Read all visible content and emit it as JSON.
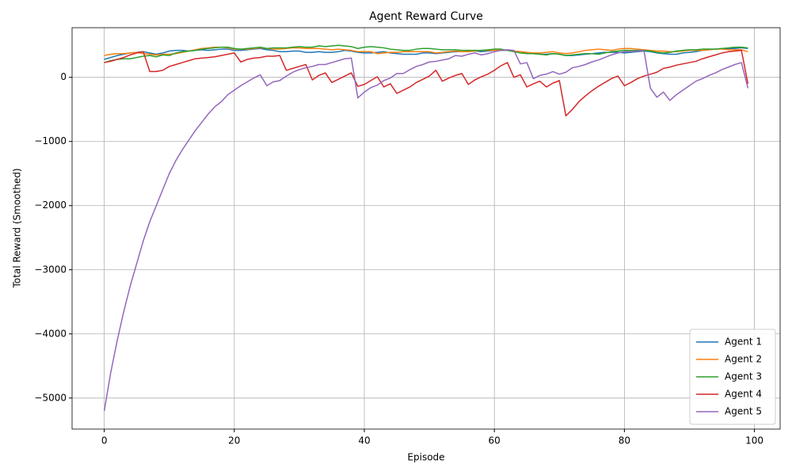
{
  "chart_data": {
    "type": "line",
    "title": "Agent Reward Curve",
    "x_label": "Episode",
    "y_label": "Total Reward (Smoothed)",
    "x": [
      0,
      1,
      2,
      3,
      4,
      5,
      6,
      7,
      8,
      9,
      10,
      11,
      12,
      13,
      14,
      15,
      16,
      17,
      18,
      19,
      20,
      21,
      22,
      23,
      24,
      25,
      26,
      27,
      28,
      29,
      30,
      31,
      32,
      33,
      34,
      35,
      36,
      37,
      38,
      39,
      40,
      41,
      42,
      43,
      44,
      45,
      46,
      47,
      48,
      49,
      50,
      51,
      52,
      53,
      54,
      55,
      56,
      57,
      58,
      59,
      60,
      61,
      62,
      63,
      64,
      65,
      66,
      67,
      68,
      69,
      70,
      71,
      72,
      73,
      74,
      75,
      76,
      77,
      78,
      79,
      80,
      81,
      82,
      83,
      84,
      85,
      86,
      87,
      88,
      89,
      90,
      91,
      92,
      93,
      94,
      95,
      96,
      97,
      98,
      99
    ],
    "series": [
      {
        "name": "Agent 1",
        "color": "#1f77b4",
        "values": [
          280,
          310,
          340,
          360,
          380,
          390,
          400,
          380,
          360,
          380,
          410,
          420,
          420,
          410,
          420,
          430,
          420,
          430,
          440,
          440,
          420,
          420,
          430,
          440,
          450,
          430,
          420,
          400,
          400,
          410,
          410,
          390,
          390,
          400,
          390,
          390,
          400,
          420,
          410,
          390,
          380,
          380,
          390,
          400,
          380,
          370,
          360,
          360,
          360,
          380,
          380,
          370,
          380,
          390,
          400,
          400,
          410,
          410,
          400,
          410,
          420,
          420,
          420,
          410,
          400,
          380,
          370,
          360,
          360,
          370,
          360,
          340,
          340,
          350,
          360,
          370,
          380,
          390,
          390,
          390,
          380,
          390,
          400,
          410,
          400,
          380,
          370,
          360,
          360,
          380,
          390,
          400,
          420,
          430,
          440,
          450,
          450,
          450,
          460,
          450
        ]
      },
      {
        "name": "Agent 2",
        "color": "#ff7f0e",
        "values": [
          340,
          360,
          370,
          370,
          380,
          390,
          370,
          360,
          350,
          360,
          360,
          370,
          390,
          410,
          430,
          450,
          460,
          470,
          470,
          460,
          440,
          440,
          440,
          450,
          460,
          450,
          440,
          440,
          450,
          460,
          460,
          450,
          450,
          450,
          440,
          430,
          440,
          430,
          420,
          400,
          400,
          400,
          370,
          380,
          390,
          390,
          400,
          400,
          400,
          400,
          400,
          380,
          390,
          400,
          410,
          400,
          400,
          410,
          420,
          420,
          420,
          430,
          420,
          410,
          400,
          390,
          380,
          380,
          390,
          400,
          380,
          370,
          380,
          400,
          420,
          430,
          440,
          430,
          420,
          440,
          450,
          450,
          440,
          430,
          420,
          410,
          410,
          400,
          400,
          410,
          420,
          420,
          420,
          430,
          440,
          440,
          430,
          430,
          430,
          400
        ]
      },
      {
        "name": "Agent 3",
        "color": "#2ca02c",
        "values": [
          230,
          260,
          280,
          290,
          290,
          310,
          330,
          340,
          320,
          350,
          340,
          380,
          400,
          410,
          420,
          440,
          450,
          460,
          470,
          470,
          450,
          440,
          450,
          460,
          470,
          450,
          460,
          460,
          460,
          470,
          480,
          470,
          470,
          490,
          480,
          490,
          500,
          490,
          480,
          450,
          470,
          480,
          470,
          460,
          440,
          430,
          420,
          420,
          440,
          450,
          450,
          440,
          430,
          430,
          430,
          420,
          420,
          420,
          420,
          430,
          440,
          440,
          420,
          400,
          380,
          370,
          370,
          360,
          350,
          370,
          360,
          340,
          350,
          360,
          370,
          370,
          360,
          380,
          400,
          410,
          420,
          420,
          420,
          420,
          410,
          390,
          380,
          390,
          410,
          420,
          430,
          430,
          440,
          440,
          440,
          450,
          460,
          470,
          470,
          460
        ]
      },
      {
        "name": "Agent 4",
        "color": "#d62728",
        "values": [
          230,
          250,
          280,
          310,
          350,
          380,
          400,
          90,
          90,
          110,
          170,
          200,
          230,
          260,
          290,
          300,
          310,
          320,
          340,
          360,
          380,
          240,
          280,
          300,
          310,
          330,
          330,
          340,
          110,
          140,
          170,
          200,
          -40,
          30,
          70,
          -80,
          -30,
          20,
          70,
          -140,
          -110,
          -50,
          10,
          -150,
          -100,
          -250,
          -200,
          -150,
          -80,
          -30,
          20,
          110,
          -60,
          -10,
          30,
          60,
          -110,
          -40,
          10,
          50,
          110,
          180,
          230,
          0,
          40,
          -150,
          -100,
          -60,
          -150,
          -90,
          -50,
          -600,
          -500,
          -380,
          -290,
          -210,
          -140,
          -80,
          -20,
          20,
          -130,
          -80,
          -20,
          20,
          50,
          80,
          140,
          160,
          190,
          210,
          230,
          250,
          290,
          320,
          350,
          380,
          400,
          410,
          420,
          -100
        ]
      },
      {
        "name": "Agent 5",
        "color": "#9467bd",
        "values": [
          -5200,
          -4600,
          -4100,
          -3650,
          -3250,
          -2900,
          -2550,
          -2250,
          -2000,
          -1750,
          -1500,
          -1300,
          -1130,
          -980,
          -830,
          -700,
          -570,
          -460,
          -380,
          -270,
          -200,
          -130,
          -70,
          -10,
          40,
          -130,
          -70,
          -50,
          20,
          80,
          120,
          150,
          170,
          200,
          200,
          230,
          260,
          290,
          300,
          -320,
          -230,
          -160,
          -120,
          -50,
          -10,
          60,
          60,
          120,
          170,
          200,
          240,
          250,
          270,
          290,
          340,
          330,
          360,
          380,
          350,
          370,
          400,
          420,
          430,
          420,
          210,
          230,
          -20,
          30,
          50,
          90,
          50,
          80,
          150,
          170,
          200,
          240,
          270,
          310,
          350,
          380,
          400,
          400,
          410,
          420,
          -170,
          -310,
          -230,
          -360,
          -270,
          -200,
          -130,
          -60,
          -20,
          30,
          70,
          120,
          160,
          200,
          230,
          -170
        ]
      }
    ],
    "xlim": [
      -4.95,
      103.95
    ],
    "ylim": [
      -5484,
      774
    ],
    "xticks": [
      0,
      20,
      40,
      60,
      80,
      100
    ],
    "yticks": [
      {
        "value": -5000,
        "label": "−5000"
      },
      {
        "value": -4000,
        "label": "−4000"
      },
      {
        "value": -3000,
        "label": "−3000"
      },
      {
        "value": -2000,
        "label": "−2000"
      },
      {
        "value": -1000,
        "label": "−1000"
      },
      0
    ],
    "grid": true,
    "legend": "lower right"
  }
}
